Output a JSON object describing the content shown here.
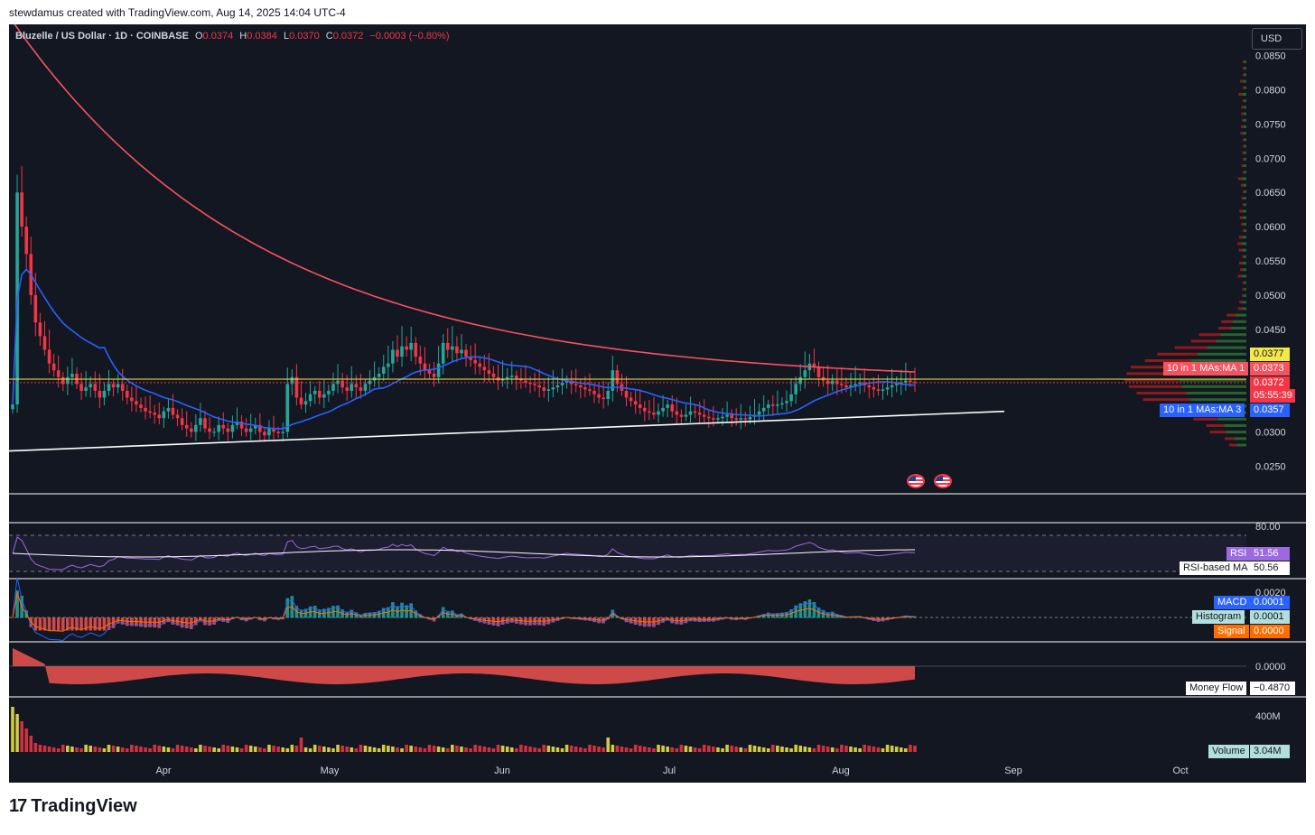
{
  "attribution": "stewdamus created with TradingView.com, Aug 14, 2025 14:04 UTC-4",
  "header": {
    "symbol": "Bluzelle / US Dollar · 1D · COINBASE",
    "o_label": "O",
    "o_value": "0.0374",
    "h_label": "H",
    "h_value": "0.0384",
    "l_label": "L",
    "l_value": "0.0370",
    "c_label": "C",
    "c_value": "0.0372",
    "change": "−0.0003 (−0.80%)"
  },
  "currency_button": "USD",
  "colors": {
    "background": "#131722",
    "up": "#26a69a",
    "down": "#f23645",
    "ma_red": "#f7525f",
    "ma_blue": "#2962ff",
    "trendline": "#ffffff",
    "yellow": "#f5e94a",
    "rsi": "#9c6ade",
    "macd": "#2962ff",
    "signal": "#ff6d00"
  },
  "price_tags": {
    "yellow_level": "0.0377",
    "ma1_label": "10 in 1 MAs:MA 1",
    "ma1_value": "0.0373",
    "close_value": "0.0372",
    "countdown": "05:55:39",
    "ma3_label": "10 in 1 MAs:MA 3",
    "ma3_value": "0.0357"
  },
  "indicators": {
    "rsi_label": "RSI",
    "rsi_value": "51.56",
    "rsi_ma_label": "RSI-based MA",
    "rsi_ma_value": "50.56",
    "rsi_scale": "80.00",
    "macd_label": "MACD",
    "macd_value": "0.0001",
    "hist_label": "Histogram",
    "hist_value": "0.0001",
    "signal_label": "Signal",
    "signal_value": "0.0000",
    "macd_scale": "0.0020",
    "mf_label": "Money Flow",
    "mf_value": "−0.4870",
    "mf_scale": "0.0000",
    "vol_label": "Volume",
    "vol_value": "3.04M",
    "vol_scale": "400M"
  },
  "chart_data": {
    "type": "candlestick",
    "title": "Bluzelle / US Dollar · 1D · COINBASE",
    "price_axis_ticks": [
      0.085,
      0.08,
      0.075,
      0.07,
      0.065,
      0.06,
      0.055,
      0.05,
      0.045,
      0.03,
      0.025
    ],
    "price_axis_labels": [
      "0.0850",
      "0.0800",
      "0.0750",
      "0.0700",
      "0.0650",
      "0.0600",
      "0.0550",
      "0.0500",
      "0.0450",
      "0.0300",
      "0.0250"
    ],
    "x_axis_labels": [
      "Apr",
      "May",
      "Jun",
      "Jul",
      "Aug",
      "Sep",
      "Oct"
    ],
    "ylim": [
      0.022,
      0.088
    ],
    "close_series": [
      0.034,
      0.065,
      0.06,
      0.056,
      0.05,
      0.046,
      0.044,
      0.042,
      0.04,
      0.039,
      0.038,
      0.037,
      0.038,
      0.0385,
      0.037,
      0.036,
      0.0365,
      0.037,
      0.036,
      0.035,
      0.036,
      0.037,
      0.0365,
      0.037,
      0.036,
      0.035,
      0.0345,
      0.034,
      0.0335,
      0.033,
      0.0328,
      0.0325,
      0.032,
      0.033,
      0.0335,
      0.0325,
      0.032,
      0.031,
      0.0305,
      0.03,
      0.031,
      0.032,
      0.0305,
      0.03,
      0.03,
      0.031,
      0.0305,
      0.03,
      0.031,
      0.0315,
      0.0305,
      0.03,
      0.0305,
      0.031,
      0.03,
      0.0295,
      0.0305,
      0.03,
      0.0298,
      0.03,
      0.037,
      0.038,
      0.035,
      0.034,
      0.0345,
      0.0355,
      0.036,
      0.035,
      0.0355,
      0.036,
      0.037,
      0.0375,
      0.0365,
      0.036,
      0.037,
      0.0365,
      0.036,
      0.037,
      0.0375,
      0.038,
      0.0385,
      0.0395,
      0.04,
      0.042,
      0.041,
      0.0425,
      0.042,
      0.043,
      0.041,
      0.04,
      0.039,
      0.0385,
      0.038,
      0.04,
      0.043,
      0.042,
      0.0425,
      0.0415,
      0.042,
      0.041,
      0.0405,
      0.04,
      0.0395,
      0.039,
      0.0385,
      0.038,
      0.0375,
      0.0378,
      0.038,
      0.0382,
      0.0378,
      0.0375,
      0.0372,
      0.037,
      0.0368,
      0.0365,
      0.036,
      0.0362,
      0.0365,
      0.0368,
      0.0372,
      0.0375,
      0.037,
      0.0368,
      0.0365,
      0.0362,
      0.036,
      0.0355,
      0.035,
      0.0348,
      0.036,
      0.039,
      0.037,
      0.036,
      0.035,
      0.0345,
      0.034,
      0.0335,
      0.033,
      0.0328,
      0.0325,
      0.033,
      0.0335,
      0.034,
      0.033,
      0.0325,
      0.0322,
      0.0325,
      0.033,
      0.0328,
      0.0325,
      0.0322,
      0.032,
      0.0318,
      0.032,
      0.0322,
      0.0325,
      0.032,
      0.0318,
      0.032,
      0.0318,
      0.0322,
      0.0325,
      0.033,
      0.0335,
      0.034,
      0.0338,
      0.034,
      0.0342,
      0.0345,
      0.0355,
      0.037,
      0.038,
      0.039,
      0.04,
      0.0395,
      0.038,
      0.0375,
      0.037,
      0.0375,
      0.037,
      0.0368,
      0.0365,
      0.0368,
      0.037,
      0.0372,
      0.0368,
      0.0365,
      0.0362,
      0.036,
      0.0362,
      0.0365,
      0.0368,
      0.037,
      0.0372,
      0.0375,
      0.0373,
      0.0372
    ],
    "ma1_value": 0.0373,
    "ma3_value": 0.0357,
    "horizontal_level": 0.0377,
    "rsi": {
      "value": 51.56,
      "ma": 50.56
    },
    "macd": {
      "macd": 0.0001,
      "histogram": 0.0001,
      "signal": 0.0
    },
    "money_flow": -0.487,
    "volume": "3.04M"
  }
}
